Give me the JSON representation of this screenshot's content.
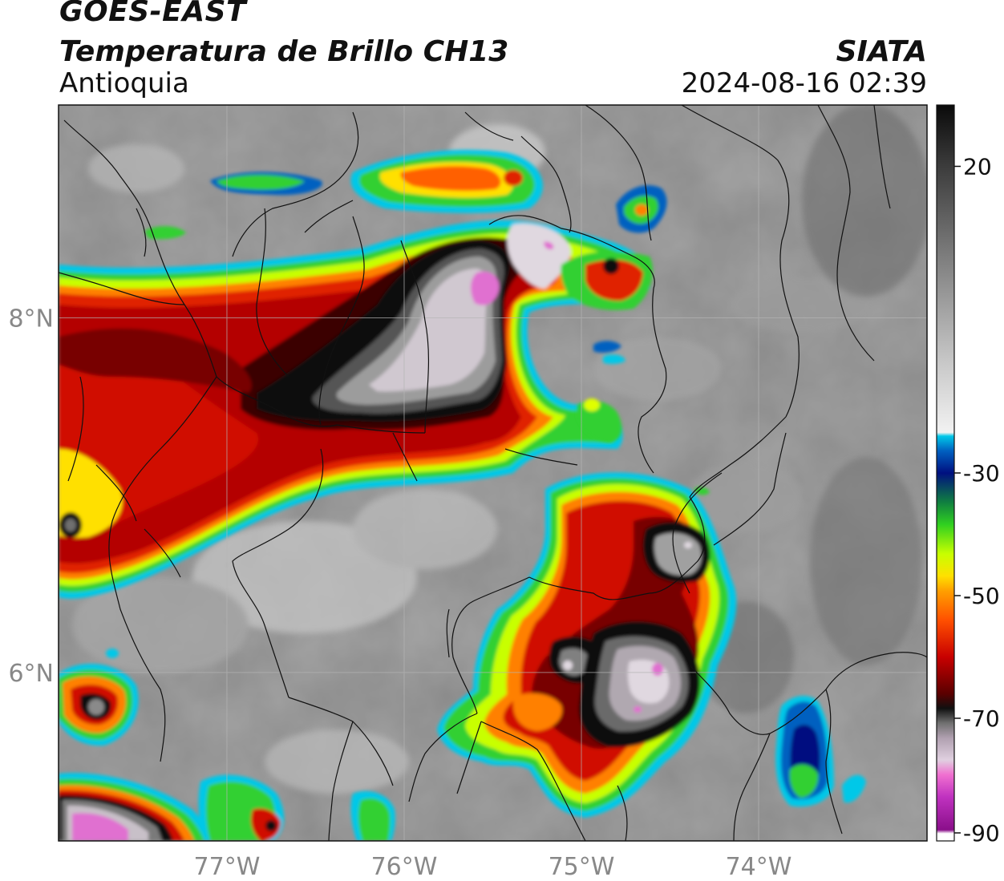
{
  "header": {
    "satellite": "GOES-EAST",
    "product": "Temperatura de Brillo CH13",
    "region": "Antioquia",
    "agency": "SIATA",
    "datetime": "2024-08-16 02:39"
  },
  "map": {
    "lon_range": [
      -77.95,
      -73.05
    ],
    "lat_range": [
      5.05,
      9.2
    ],
    "lon_ticks": [
      {
        "value": -77,
        "label": "77°W"
      },
      {
        "value": -76,
        "label": "76°W"
      },
      {
        "value": -75,
        "label": "75°W"
      },
      {
        "value": -74,
        "label": "74°W"
      }
    ],
    "lat_ticks": [
      {
        "value": 8,
        "label": "8°N"
      },
      {
        "value": 6,
        "label": "6°N"
      }
    ],
    "grid": true
  },
  "colorbar": {
    "range": [
      -90,
      30
    ],
    "ticks": [
      {
        "value": 20,
        "label": "20"
      },
      {
        "value": -30,
        "label": "-30"
      },
      {
        "value": -50,
        "label": "-50"
      },
      {
        "value": -70,
        "label": "-70"
      },
      {
        "value": -90,
        "label": "-90"
      }
    ]
  },
  "colors": {
    "background_gray": "#8a8a8a",
    "border_lines": "#111111"
  }
}
